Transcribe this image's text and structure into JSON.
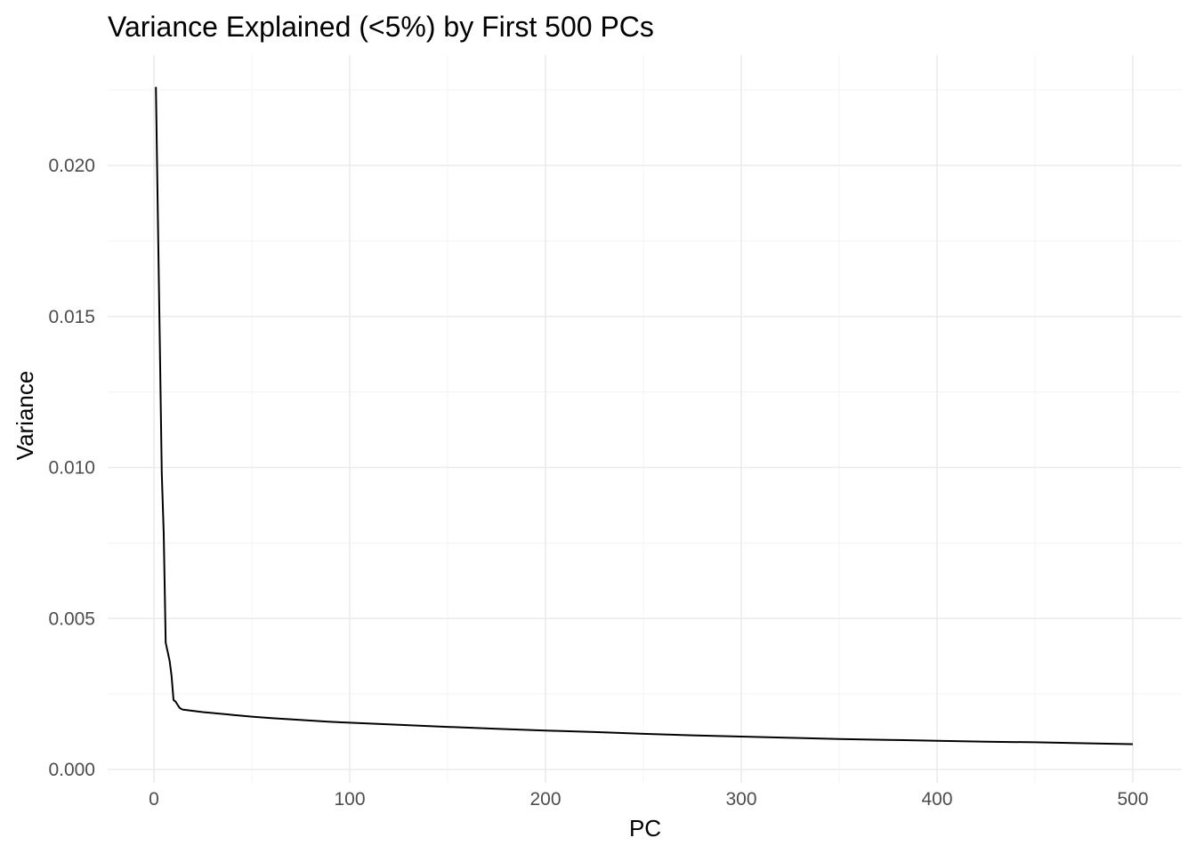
{
  "chart_data": {
    "type": "line",
    "title": "Variance Explained (<5%) by First 500 PCs",
    "xlabel": "PC",
    "ylabel": "Variance",
    "xlim": [
      0,
      500
    ],
    "ylim": [
      0,
      0.0225
    ],
    "x_ticks": [
      0,
      100,
      200,
      300,
      400,
      500
    ],
    "x_tick_labels": [
      "0",
      "100",
      "200",
      "300",
      "400",
      "500"
    ],
    "y_ticks": [
      0,
      0.005,
      0.01,
      0.015,
      0.02
    ],
    "y_tick_labels": [
      "0.000",
      "0.005",
      "0.010",
      "0.015",
      "0.020"
    ],
    "grid": true,
    "legend": "none",
    "line_color": "#000000",
    "series": [
      {
        "x": [
          1,
          2,
          3,
          4,
          5,
          6,
          7,
          8,
          9,
          10,
          11,
          12,
          13,
          14,
          15,
          20,
          25,
          30,
          40,
          50,
          60,
          70,
          80,
          90,
          100,
          125,
          150,
          175,
          200,
          225,
          250,
          275,
          300,
          325,
          350,
          375,
          400,
          425,
          450,
          475,
          500
        ],
        "y": [
          0.0226,
          0.0183,
          0.0141,
          0.0098,
          0.0078,
          0.0042,
          0.0039,
          0.0036,
          0.0031,
          0.0023,
          0.00225,
          0.00215,
          0.00205,
          0.002,
          0.00198,
          0.00194,
          0.0019,
          0.00187,
          0.00181,
          0.00175,
          0.0017,
          0.00166,
          0.00162,
          0.00158,
          0.00155,
          0.00148,
          0.00141,
          0.00135,
          0.00129,
          0.00124,
          0.00118,
          0.00113,
          0.00109,
          0.00105,
          0.00101,
          0.00098,
          0.00095,
          0.00092,
          0.0009,
          0.00087,
          0.00084
        ]
      }
    ]
  }
}
